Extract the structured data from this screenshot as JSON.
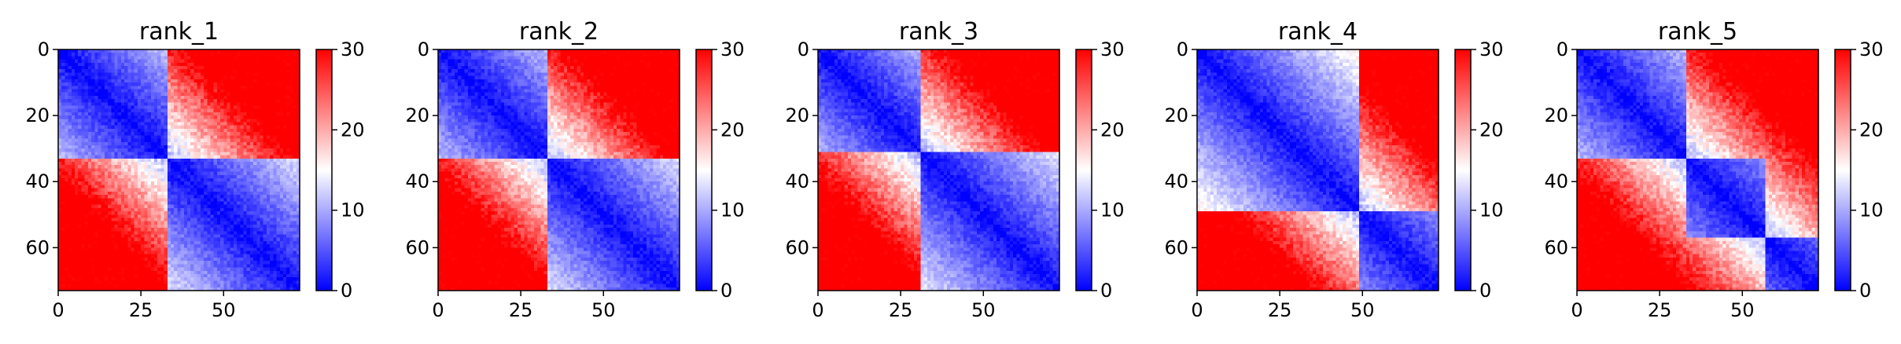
{
  "chart_data": [
    {
      "type": "heatmap",
      "title": "rank_1",
      "n": 73,
      "xticks": [
        0,
        25,
        50
      ],
      "yticks": [
        0,
        20,
        40,
        60
      ],
      "colorbar": {
        "ticks": [
          0,
          10,
          20,
          30
        ],
        "vmin": 0,
        "vmax": 30,
        "colormap": "bwr",
        "colors": [
          "#0000ff",
          "#ffffff",
          "#ff0000"
        ]
      },
      "blocks": [
        [
          0,
          32
        ],
        [
          33,
          72
        ]
      ],
      "values_note_free": true
    },
    {
      "type": "heatmap",
      "title": "rank_2",
      "n": 73,
      "xticks": [
        0,
        25,
        50
      ],
      "yticks": [
        0,
        20,
        40,
        60
      ],
      "colorbar": {
        "ticks": [
          0,
          10,
          20,
          30
        ],
        "vmin": 0,
        "vmax": 30,
        "colormap": "bwr",
        "colors": [
          "#0000ff",
          "#ffffff",
          "#ff0000"
        ]
      },
      "blocks": [
        [
          0,
          32
        ],
        [
          33,
          72
        ]
      ]
    },
    {
      "type": "heatmap",
      "title": "rank_3",
      "n": 73,
      "xticks": [
        0,
        25,
        50
      ],
      "yticks": [
        0,
        20,
        40,
        60
      ],
      "colorbar": {
        "ticks": [
          0,
          10,
          20,
          30
        ],
        "vmin": 0,
        "vmax": 30,
        "colormap": "bwr",
        "colors": [
          "#0000ff",
          "#ffffff",
          "#ff0000"
        ]
      },
      "blocks": [
        [
          0,
          30
        ],
        [
          31,
          72
        ]
      ]
    },
    {
      "type": "heatmap",
      "title": "rank_4",
      "n": 73,
      "xticks": [
        0,
        25,
        50
      ],
      "yticks": [
        0,
        20,
        40,
        60
      ],
      "colorbar": {
        "ticks": [
          0,
          10,
          20,
          30
        ],
        "vmin": 0,
        "vmax": 30,
        "colormap": "bwr",
        "colors": [
          "#0000ff",
          "#ffffff",
          "#ff0000"
        ]
      },
      "blocks": [
        [
          0,
          48
        ],
        [
          49,
          72
        ]
      ]
    },
    {
      "type": "heatmap",
      "title": "rank_5",
      "n": 73,
      "xticks": [
        0,
        25,
        50
      ],
      "yticks": [
        0,
        20,
        40,
        60
      ],
      "colorbar": {
        "ticks": [
          0,
          10,
          20,
          30
        ],
        "vmin": 0,
        "vmax": 30,
        "colormap": "bwr",
        "colors": [
          "#0000ff",
          "#ffffff",
          "#ff0000"
        ]
      },
      "blocks": [
        [
          0,
          32
        ],
        [
          33,
          56
        ],
        [
          57,
          72
        ]
      ]
    }
  ]
}
